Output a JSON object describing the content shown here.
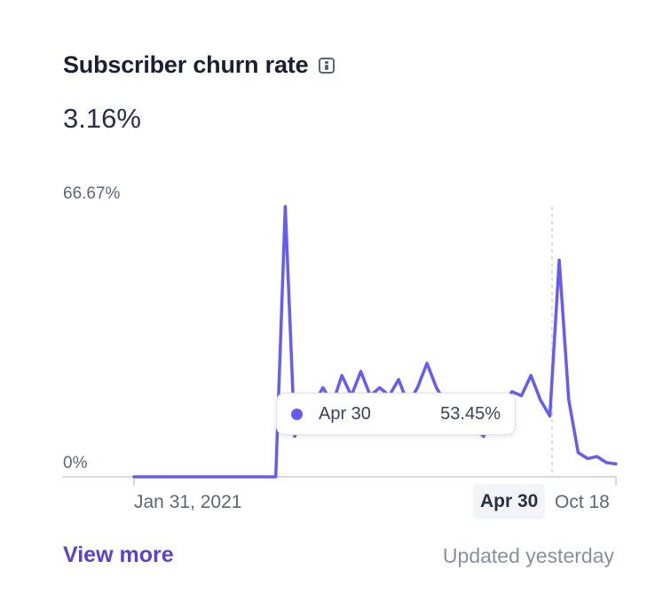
{
  "header": {
    "title": "Subscriber churn rate",
    "info_icon": "info-icon"
  },
  "summary": {
    "value": "3.16%"
  },
  "tooltip": {
    "date": "Apr 30",
    "value": "53.45%"
  },
  "footer": {
    "view_more": "View more",
    "updated": "Updated yesterday"
  },
  "colors": {
    "line": "#635bff",
    "accent_link": "#5b3fd6",
    "axis": "#c8cbd4",
    "crosshair": "#cfd2d9"
  },
  "chart_data": {
    "type": "line",
    "title": "Subscriber churn rate",
    "xlabel": "",
    "ylabel": "",
    "x_tick_labels": [
      "Jan 31, 2021",
      "Oct 18"
    ],
    "y_tick_labels": [
      "0%",
      "66.67%"
    ],
    "ylim": [
      0,
      66.67
    ],
    "grid": false,
    "highlighted_point": {
      "x": "Apr 30",
      "y": 53.45
    },
    "series": [
      {
        "values": [
          0,
          0,
          0,
          0,
          0,
          0,
          0,
          0,
          0,
          0,
          0,
          0,
          0,
          0,
          0,
          0,
          66.67,
          10,
          15,
          18,
          22,
          18,
          25,
          20,
          26,
          20,
          22,
          20,
          24,
          18,
          22,
          28,
          22,
          18,
          20,
          16,
          12,
          10,
          14,
          18,
          21,
          20,
          25,
          19,
          15,
          53.45,
          19,
          6,
          4.5,
          5,
          3.5,
          3.2
        ]
      }
    ]
  }
}
